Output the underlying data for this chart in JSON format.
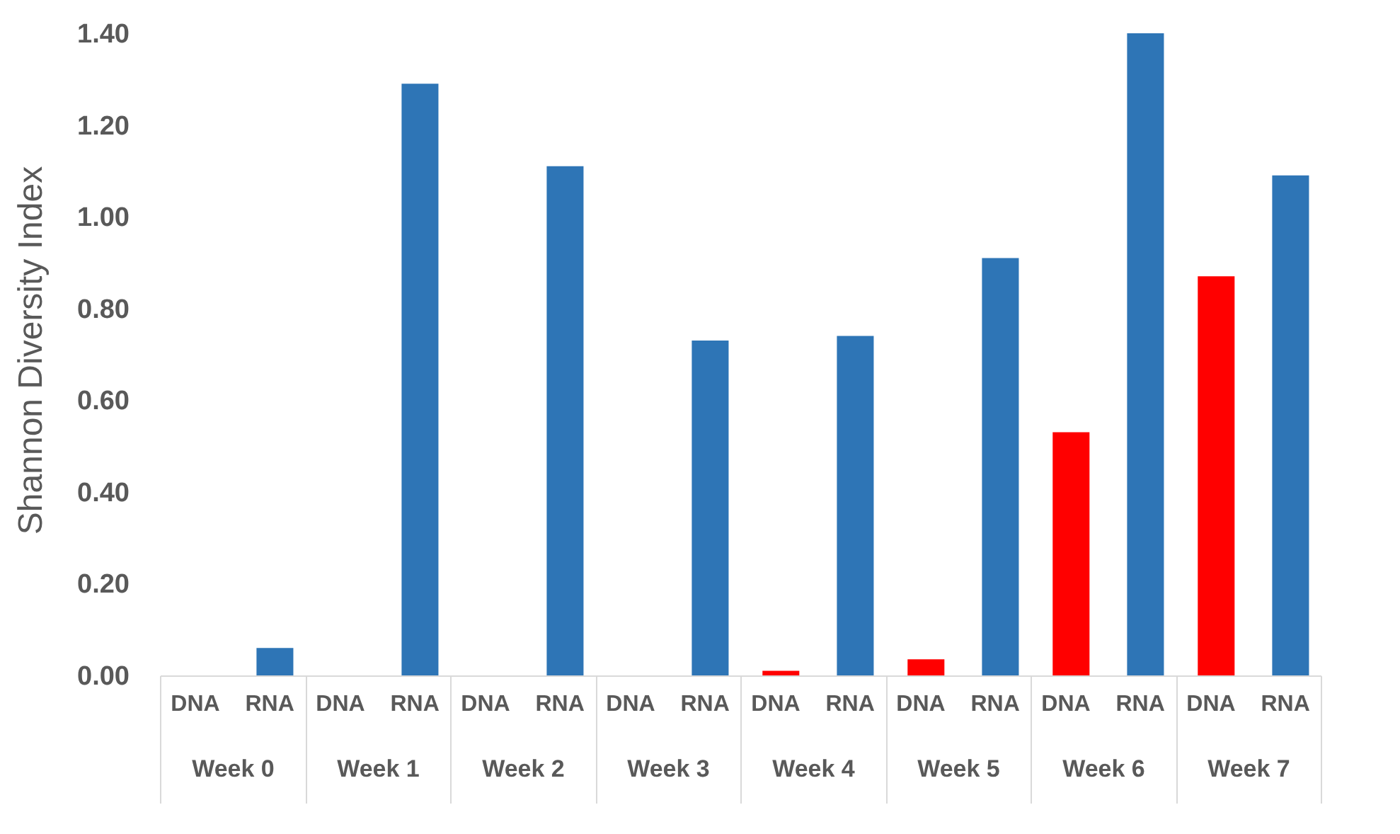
{
  "chart_data": {
    "type": "bar",
    "ylabel": "Shannon Diversity Index",
    "categories": [
      "Week 0",
      "Week 1",
      "Week 2",
      "Week 3",
      "Week 4",
      "Week 5",
      "Week 6",
      "Week 7"
    ],
    "series": [
      {
        "name": "DNA",
        "color": "#ff0000",
        "values": [
          0,
          0,
          0,
          0,
          0.01,
          0.035,
          0.53,
          0.87
        ]
      },
      {
        "name": "RNA",
        "color": "#2e75b6",
        "values": [
          0.06,
          1.29,
          1.11,
          0.73,
          0.74,
          0.91,
          1.4,
          1.09
        ]
      }
    ],
    "ylim": [
      0,
      1.42
    ],
    "yticks": [
      {
        "value": 0,
        "label": "0.00"
      },
      {
        "value": 0.2,
        "label": "0.20"
      },
      {
        "value": 0.4,
        "label": "0.40"
      },
      {
        "value": 0.6,
        "label": "0.60"
      },
      {
        "value": 0.8,
        "label": "0.80"
      },
      {
        "value": 1,
        "label": "1.00"
      },
      {
        "value": 1.2,
        "label": "1.20"
      },
      {
        "value": 1.4,
        "label": "1.40"
      }
    ],
    "grid": false,
    "legend": false
  }
}
